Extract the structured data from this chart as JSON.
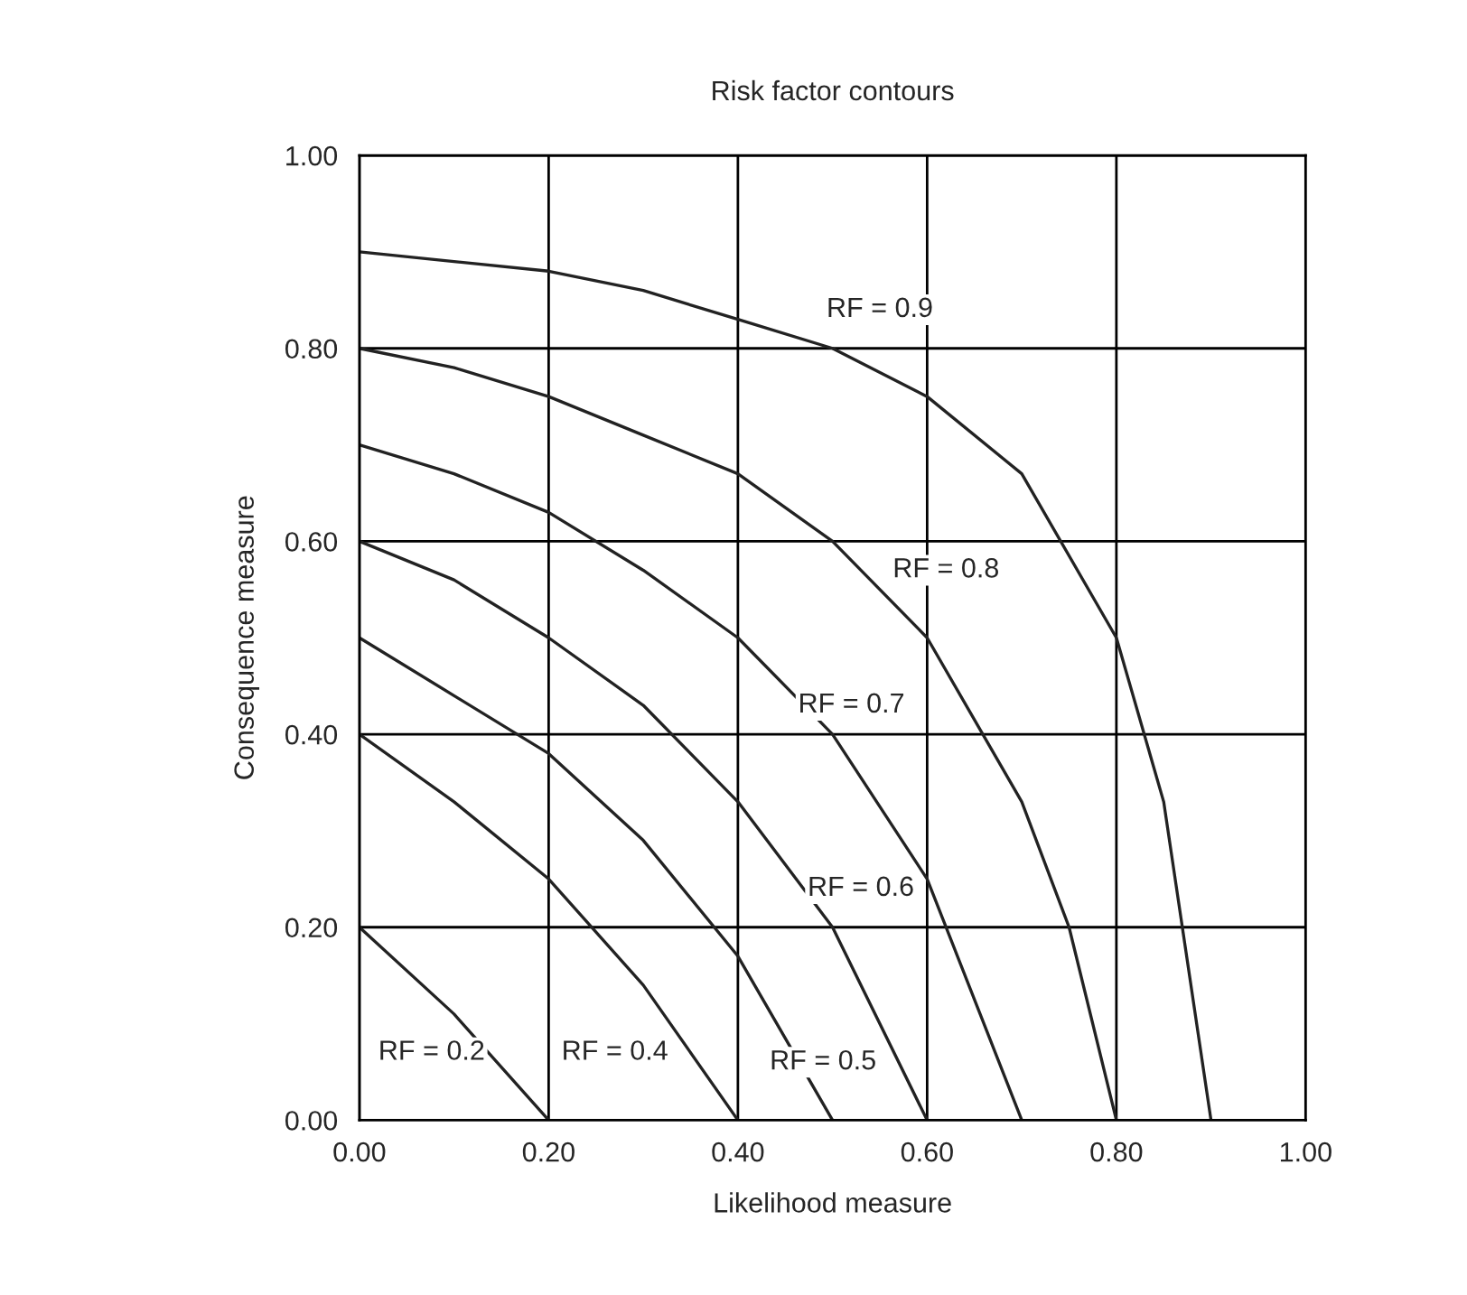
{
  "chart_data": {
    "type": "line",
    "title": "Risk factor contours",
    "xlabel": "Likelihood measure",
    "ylabel": "Consequence measure",
    "series": [
      {
        "name": "RF = 0.2",
        "color": "#222222",
        "x": [
          0,
          0.1,
          0.2
        ],
        "values": [
          0.2,
          0.11,
          0
        ]
      },
      {
        "name": "RF = 0.4",
        "color": "#222222",
        "x": [
          0,
          0.1,
          0.2,
          0.3,
          0.4
        ],
        "values": [
          0.4,
          0.33,
          0.25,
          0.14,
          0
        ]
      },
      {
        "name": "RF = 0.5",
        "color": "#222222",
        "x": [
          0,
          0.1,
          0.2,
          0.3,
          0.4,
          0.5
        ],
        "values": [
          0.5,
          0.44,
          0.38,
          0.29,
          0.17,
          0
        ]
      },
      {
        "name": "RF = 0.6",
        "color": "#222222",
        "x": [
          0,
          0.1,
          0.2,
          0.3,
          0.4,
          0.5,
          0.6
        ],
        "values": [
          0.6,
          0.56,
          0.5,
          0.43,
          0.33,
          0.2,
          0
        ]
      },
      {
        "name": "RF = 0.7",
        "color": "#222222",
        "x": [
          0,
          0.1,
          0.2,
          0.3,
          0.4,
          0.5,
          0.6,
          0.7
        ],
        "values": [
          0.7,
          0.67,
          0.63,
          0.57,
          0.5,
          0.4,
          0.25,
          0
        ]
      },
      {
        "name": "RF = 0.8",
        "color": "#222222",
        "x": [
          0,
          0.1,
          0.2,
          0.3,
          0.4,
          0.5,
          0.6,
          0.7,
          0.75,
          0.8
        ],
        "values": [
          0.8,
          0.78,
          0.75,
          0.71,
          0.67,
          0.6,
          0.5,
          0.33,
          0.2,
          0
        ]
      },
      {
        "name": "RF = 0.9",
        "color": "#222222",
        "x": [
          0,
          0.1,
          0.2,
          0.3,
          0.4,
          0.5,
          0.6,
          0.7,
          0.8,
          0.85,
          0.9
        ],
        "values": [
          0.9,
          0.89,
          0.88,
          0.86,
          0.83,
          0.8,
          0.75,
          0.67,
          0.5,
          0.33,
          0
        ]
      }
    ],
    "xlim": [
      0,
      1
    ],
    "ylim": [
      0,
      1
    ],
    "xticks": [
      {
        "value": 0,
        "label": "0.00"
      },
      {
        "value": 0.2,
        "label": "0.20"
      },
      {
        "value": 0.4,
        "label": "0.40"
      },
      {
        "value": 0.6,
        "label": "0.60"
      },
      {
        "value": 0.8,
        "label": "0.80"
      },
      {
        "value": 1,
        "label": "1.00"
      }
    ],
    "yticks": [
      {
        "value": 0,
        "label": "0.00"
      },
      {
        "value": 0.2,
        "label": "0.20"
      },
      {
        "value": 0.4,
        "label": "0.40"
      },
      {
        "value": 0.6,
        "label": "0.60"
      },
      {
        "value": 0.8,
        "label": "0.80"
      },
      {
        "value": 1,
        "label": "1.00"
      }
    ],
    "grid": true,
    "legend": false,
    "marker": "none",
    "line_style": "solid"
  }
}
